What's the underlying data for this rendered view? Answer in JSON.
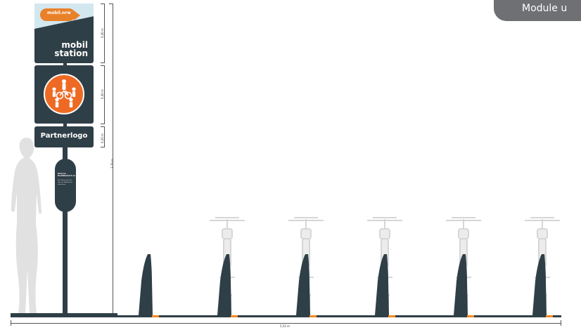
{
  "corner_tag": {
    "label": "Module u"
  },
  "top_sign": {
    "logo_text": "mobil.nrw",
    "station_line1": "mobil",
    "station_line2": "station",
    "height_label": "0,40 m"
  },
  "middle_sign": {
    "height_label": "0,40 m"
  },
  "partner_sign": {
    "label": "Partnerlogo",
    "height_label": "0,20 m"
  },
  "info_column": {
    "headline": "Und so funktioniert es",
    "body": "Hier können Sie sich über die Mobilstation informieren"
  },
  "total_height_label": "3,70 m",
  "total_width_label": "5,52 m",
  "colors": {
    "dark": "#2f3f47",
    "accent": "#ee6a24",
    "light_blue": "#d3e7ef",
    "bike_gray": "#d9d9d9"
  }
}
